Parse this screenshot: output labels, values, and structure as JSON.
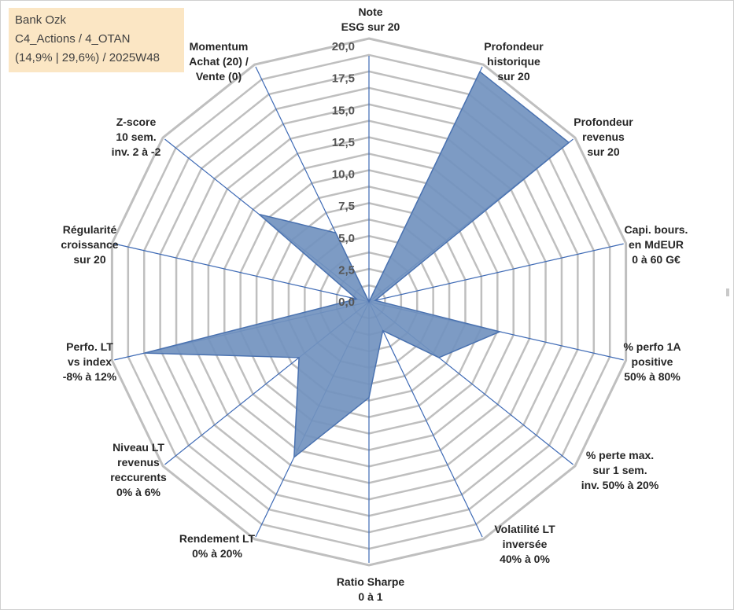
{
  "info": {
    "line1": "Bank Ozk",
    "line2": "C4_Actions / 4_OTAN",
    "line3": "(14,9% | 29,6%) / 2025W48"
  },
  "chart_data": {
    "type": "radar",
    "series": [
      {
        "values": [
          0.0,
          20.0,
          20.0,
          0.5,
          10.5,
          7.0,
          2.5,
          7.5,
          13.5,
          7.0,
          18.0,
          1.0,
          11.0,
          6.0
        ]
      }
    ],
    "categories": [
      [
        "Note",
        "ESG sur 20"
      ],
      [
        "Profondeur",
        "historique",
        "sur 20"
      ],
      [
        "Profondeur",
        "revenus",
        "sur 20"
      ],
      [
        "Capi. bours.",
        "en MdEUR",
        "0 à 60 G€"
      ],
      [
        "% perfo 1A",
        "positive",
        "50% à 80%"
      ],
      [
        "% perte max.",
        "sur 1 sem.",
        "inv. 50% à 20%"
      ],
      [
        "Volatilité LT",
        "inversée",
        "40% à 0%"
      ],
      [
        "Ratio Sharpe",
        "0 à 1"
      ],
      [
        "Rendement LT",
        "0% à 20%"
      ],
      [
        "Niveau LT",
        "revenus",
        "reccurents",
        "0% à 6%"
      ],
      [
        "Perfo. LT",
        "vs index",
        "-8% à 12%"
      ],
      [
        "Régularité",
        "croissance",
        "sur 20"
      ],
      [
        "Z-score",
        "10 sem.",
        "inv. 2 à -2"
      ],
      [
        "Momentum",
        "Achat (20) /",
        "Vente (0)"
      ]
    ],
    "ticks": [
      "0,0",
      "2,5",
      "5,0",
      "7,5",
      "10,0",
      "12,5",
      "15,0",
      "17,5",
      "20,0"
    ],
    "rmin": 0,
    "rmax": 20,
    "colors": {
      "fill": "#7292bf",
      "stroke": "#4a72b0",
      "spoke": "#3e6ab5",
      "grid": "#bfbfbf"
    }
  }
}
